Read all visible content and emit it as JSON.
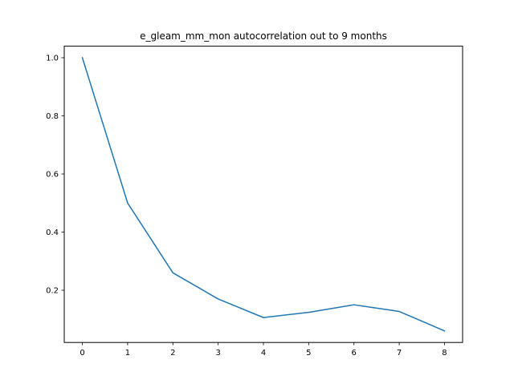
{
  "chart_data": {
    "type": "line",
    "title": "e_gleam_mm_mon autocorrelation out to 9 months",
    "xlabel": "",
    "ylabel": "",
    "x": [
      0,
      1,
      2,
      3,
      4,
      5,
      6,
      7,
      8
    ],
    "series": [
      {
        "values": [
          1.0,
          0.5,
          0.26,
          0.17,
          0.106,
          0.124,
          0.15,
          0.127,
          0.06
        ],
        "color": "#1f77b4"
      }
    ],
    "x_ticks": [
      0,
      1,
      2,
      3,
      4,
      5,
      6,
      7,
      8
    ],
    "x_tick_labels": [
      "0",
      "1",
      "2",
      "3",
      "4",
      "5",
      "6",
      "7",
      "8"
    ],
    "y_ticks": [
      0.2,
      0.4,
      0.6,
      0.8,
      1.0
    ],
    "y_tick_labels": [
      "0.2",
      "0.4",
      "0.6",
      "0.8",
      "1.0"
    ],
    "xlim": [
      -0.4,
      8.4
    ],
    "ylim": [
      0.0203,
      1.0397
    ],
    "grid": false,
    "legend": "none"
  }
}
